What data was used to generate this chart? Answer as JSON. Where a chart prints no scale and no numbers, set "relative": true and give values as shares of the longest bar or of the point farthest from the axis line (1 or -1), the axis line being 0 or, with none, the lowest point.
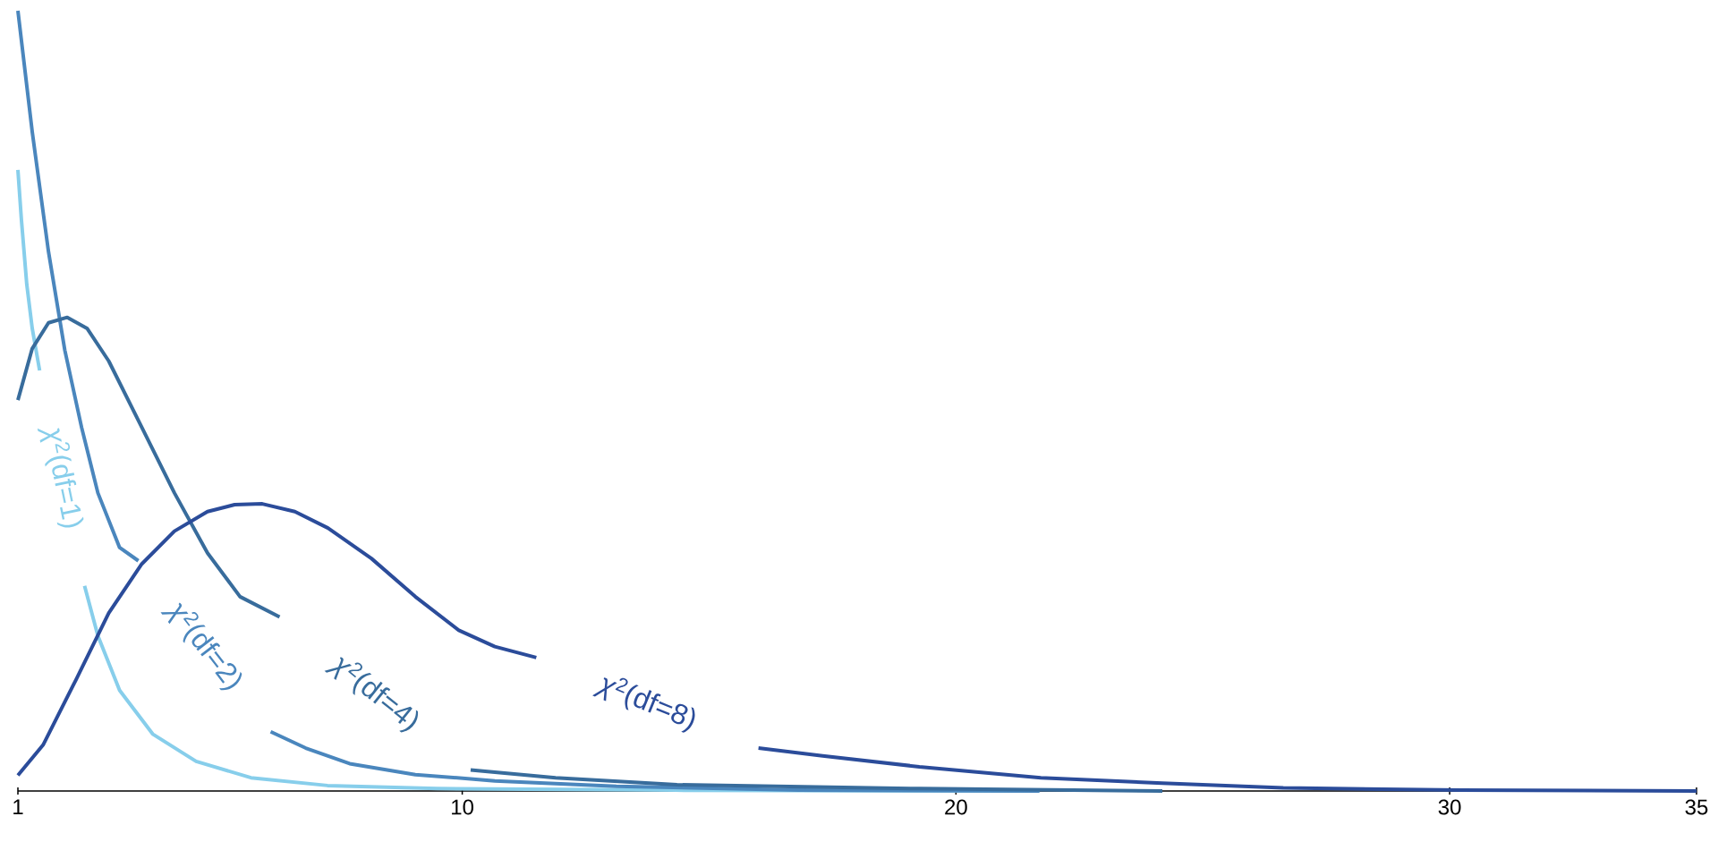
{
  "chart_data": {
    "type": "line",
    "relative": true,
    "xlim": [
      1,
      35
    ],
    "xticks": [
      1,
      10,
      20,
      30,
      35
    ],
    "series": [
      {
        "name": "*χ*$^{2}$(df=1)",
        "color": "#87ceeb",
        "x": [
          1.0,
          1.07,
          1.18,
          1.29,
          1.44,
          1.89,
          2.35,
          2.62,
          3.06,
          3.73,
          4.61,
          5.72,
          7.27,
          9.49,
          14.32,
          21.69
        ],
        "values": [
          0.796,
          0.733,
          0.649,
          0.593,
          0.539,
          null,
          0.263,
          0.199,
          0.129,
          0.073,
          0.038,
          0.017,
          0.007,
          0.003,
          0.001,
          0
        ]
      },
      {
        "name": "*χ*$^{2}$(df=2)",
        "color": "#4a86bd",
        "x": [
          1.0,
          1.29,
          1.62,
          1.95,
          2.29,
          2.62,
          3.06,
          3.44,
          4.61,
          6.12,
          6.83,
          7.72,
          9.05,
          10.66,
          13.12,
          16.81,
          21.69
        ],
        "values": [
          1,
          0.845,
          0.691,
          0.565,
          0.466,
          0.382,
          0.312,
          0.295,
          null,
          0.076,
          0.055,
          0.035,
          0.021,
          0.013,
          0.006,
          0.001,
          0
        ]
      },
      {
        "name": "*χ*$^{2}$(df=4)",
        "color": "#386c9c",
        "x": [
          1.0,
          1.29,
          1.62,
          2.0,
          2.4,
          2.84,
          3.51,
          4.17,
          4.84,
          5.5,
          6.3,
          8.16,
          10.17,
          11.89,
          14.35,
          19.26,
          24.18
        ],
        "values": [
          0.501,
          0.567,
          0.6,
          0.607,
          0.593,
          0.551,
          0.466,
          0.382,
          0.305,
          0.249,
          0.223,
          null,
          0.027,
          0.017,
          0.008,
          0.003,
          0
        ]
      },
      {
        "name": "*χ*$^{2}$(df=8)",
        "color": "#2b4c9a",
        "x": [
          1.0,
          1.51,
          2.18,
          2.84,
          3.51,
          4.17,
          4.84,
          5.39,
          5.95,
          6.61,
          7.28,
          8.16,
          9.05,
          9.93,
          10.66,
          11.5,
          13.6,
          16.0,
          17.3,
          19.26,
          21.72,
          24.18,
          26.63,
          30.21,
          35.0
        ],
        "values": [
          0.02,
          0.059,
          0.143,
          0.228,
          0.291,
          0.333,
          0.358,
          0.367,
          0.368,
          0.358,
          0.337,
          0.298,
          0.249,
          0.206,
          0.185,
          0.171,
          null,
          0.055,
          0.045,
          0.031,
          0.017,
          0.01,
          0.004,
          0.001,
          0
        ]
      }
    ]
  }
}
